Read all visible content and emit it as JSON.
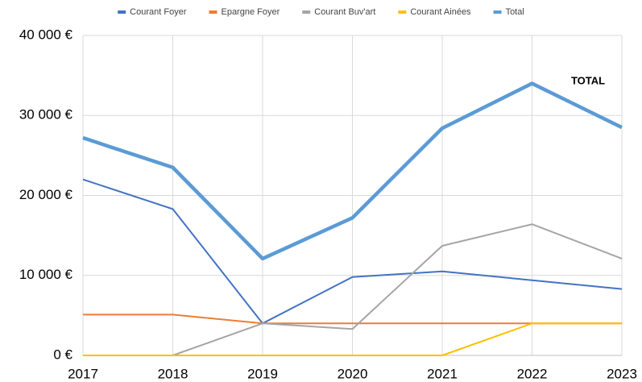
{
  "chart_data": {
    "type": "line",
    "x": [
      2017,
      2018,
      2019,
      2020,
      2021,
      2022,
      2023
    ],
    "series": [
      {
        "name": "Courant Foyer",
        "color": "#4472c4",
        "line_width": 2,
        "values": [
          22000,
          18300,
          4000,
          9800,
          10500,
          9400,
          8300
        ]
      },
      {
        "name": "Epargne Foyer",
        "color": "#ed7d31",
        "line_width": 2,
        "values": [
          5100,
          5100,
          4000,
          4000,
          4000,
          4000,
          4000
        ]
      },
      {
        "name": "Courant Buv'art",
        "color": "#a5a5a5",
        "line_width": 2,
        "values": [
          0,
          0,
          4000,
          3300,
          13700,
          16400,
          12100
        ]
      },
      {
        "name": "Courant Ainées",
        "color": "#ffc000",
        "line_width": 2,
        "values": [
          0,
          0,
          0,
          0,
          0,
          4000,
          4000
        ]
      },
      {
        "name": "Total",
        "color": "#5b9bd5",
        "line_width": 4.5,
        "values": [
          27200,
          23500,
          12100,
          17200,
          28400,
          34000,
          28500
        ]
      }
    ],
    "xlim": [
      2017,
      2023
    ],
    "xticks": [
      2017,
      2018,
      2019,
      2020,
      2021,
      2022,
      2023
    ],
    "ylim": [
      0,
      40000
    ],
    "yticks": [
      {
        "value": 0,
        "label": "0 €"
      },
      {
        "value": 10000,
        "label": "10 000 €"
      },
      {
        "value": 20000,
        "label": "20 000 €"
      },
      {
        "value": 30000,
        "label": "30 000 €"
      },
      {
        "value": 40000,
        "label": "40 000 €"
      }
    ],
    "grid": true,
    "legend": "top",
    "annotation": "TOTAL"
  }
}
